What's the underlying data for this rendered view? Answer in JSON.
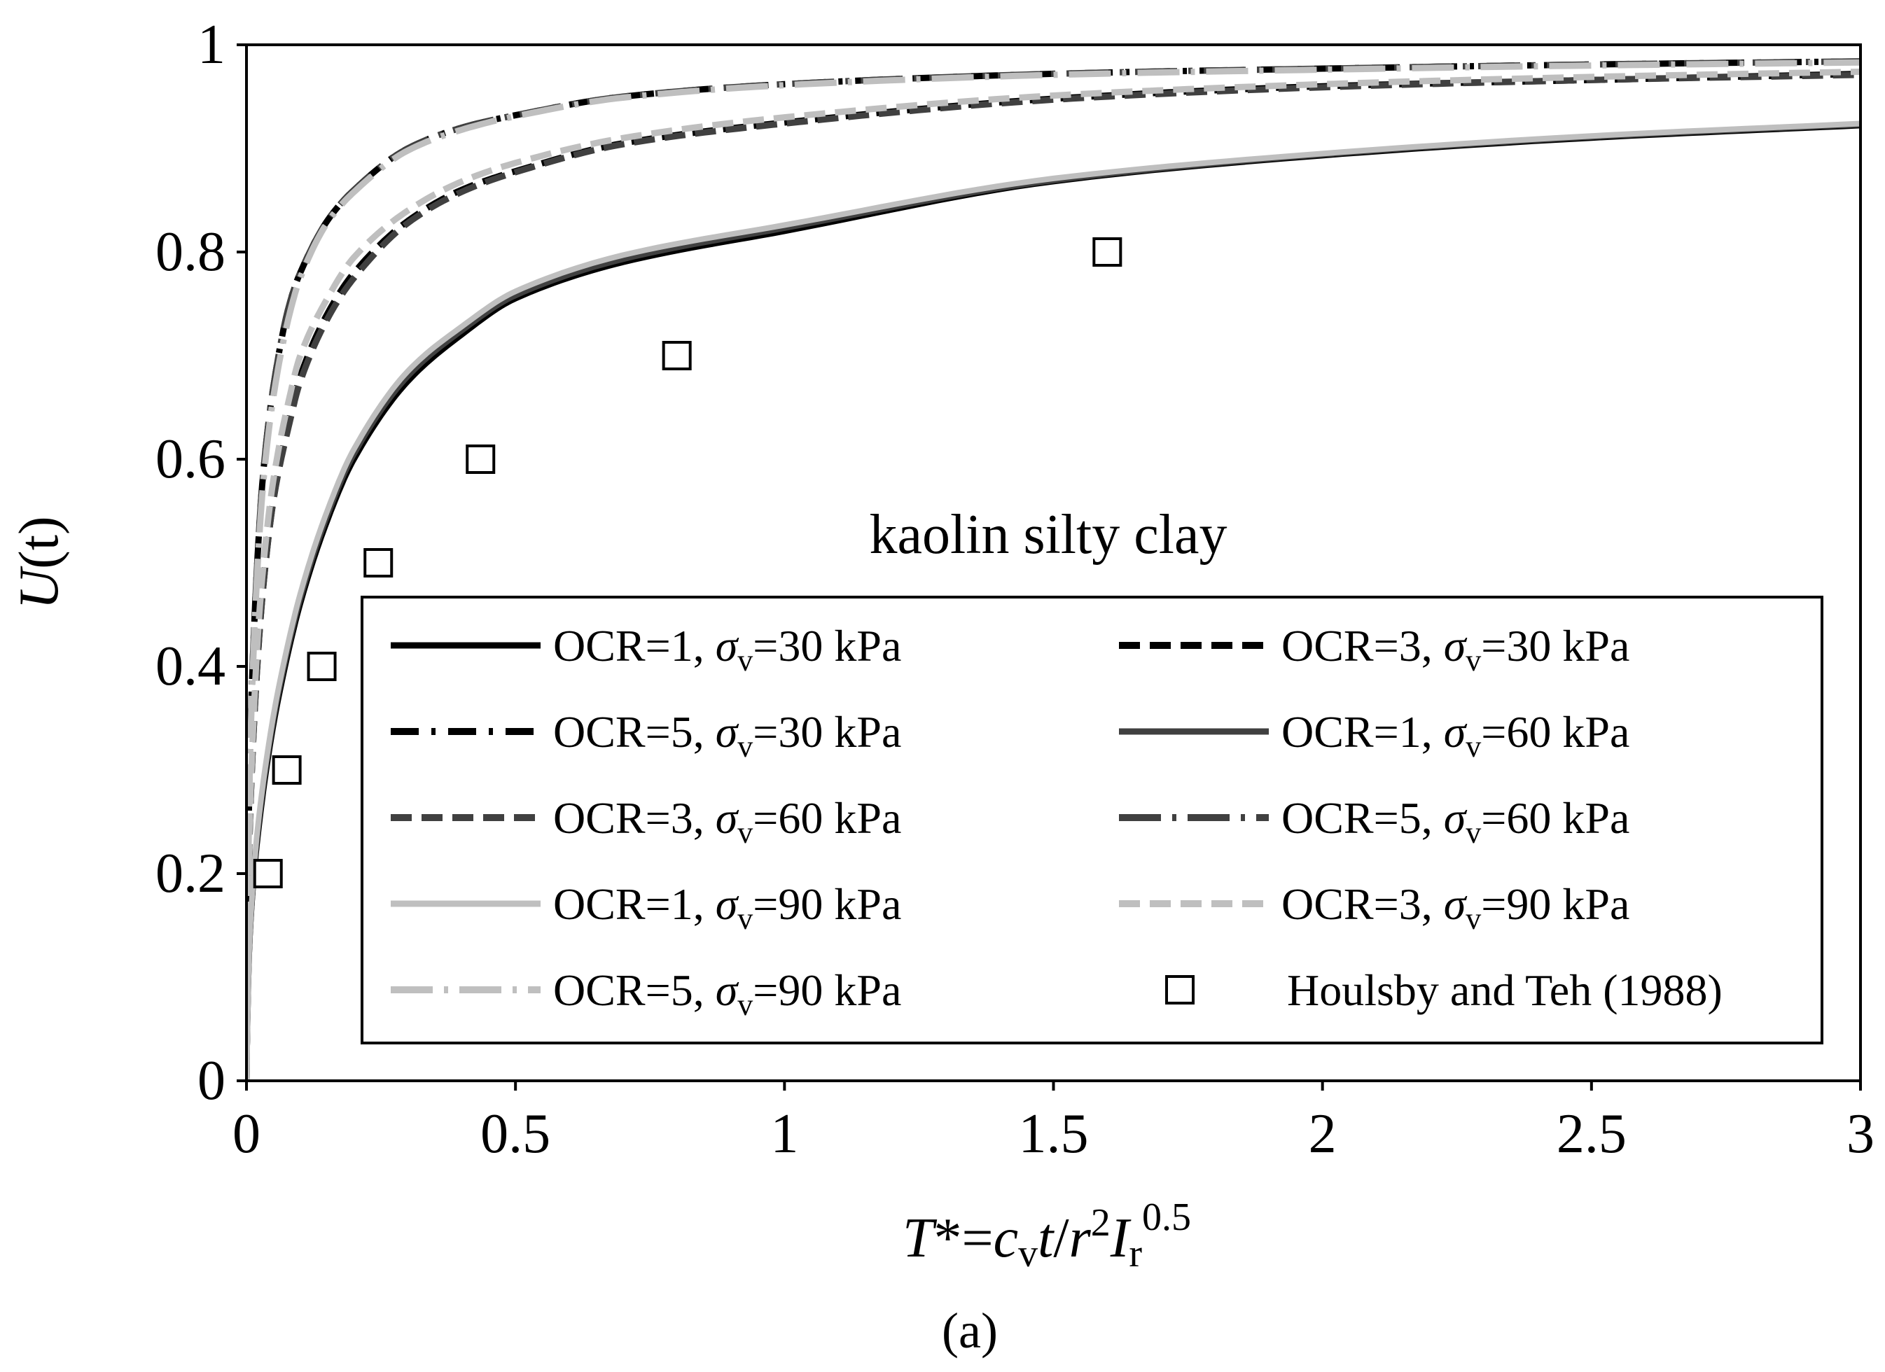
{
  "chart_data": {
    "type": "line",
    "annotation": "kaolin silty clay",
    "caption": "(a)",
    "xlabel": {
      "T": "T",
      "star_eq": "*=",
      "c": "c",
      "v_sub": "v",
      "t": "t",
      "slash": "/",
      "r": "r",
      "sq": "2",
      "I": "I",
      "r_sub": "r",
      "exp": "0.5"
    },
    "ylabel": {
      "U": "U",
      "t": "(t)"
    },
    "xlim": [
      0,
      3
    ],
    "ylim": [
      0,
      1
    ],
    "xticks": [
      "0",
      "0.5",
      "1",
      "1.5",
      "2",
      "2.5",
      "3"
    ],
    "yticks": [
      "0",
      "0.2",
      "0.4",
      "0.6",
      "0.8",
      "1"
    ],
    "grid": false,
    "legend_placement": "bottom-right",
    "series": [
      {
        "name": "OCR=1, σv=30 kPa",
        "label_pre": "OCR=1, ",
        "label_post": "=30 kPa",
        "color": "#000000",
        "dash": "solid",
        "x": [
          0,
          0.005,
          0.01,
          0.02,
          0.04,
          0.06,
          0.1,
          0.15,
          0.2,
          0.3,
          0.4,
          0.5,
          0.7,
          1.0,
          1.5,
          2.0,
          2.5,
          3.0
        ],
        "y": [
          0,
          0.12,
          0.17,
          0.23,
          0.31,
          0.37,
          0.46,
          0.54,
          0.6,
          0.675,
          0.72,
          0.755,
          0.79,
          0.82,
          0.868,
          0.893,
          0.91,
          0.922
        ]
      },
      {
        "name": "OCR=3, σv=30 kPa",
        "label_pre": "OCR=3, ",
        "label_post": "=30 kPa",
        "color": "#000000",
        "dash": "dashed",
        "x": [
          0,
          0.005,
          0.01,
          0.02,
          0.03,
          0.05,
          0.08,
          0.1,
          0.15,
          0.2,
          0.3,
          0.4,
          0.5,
          0.7,
          1.0,
          1.5,
          2.0,
          2.5,
          3.0
        ],
        "y": [
          0,
          0.22,
          0.3,
          0.4,
          0.47,
          0.56,
          0.64,
          0.68,
          0.74,
          0.78,
          0.83,
          0.86,
          0.878,
          0.905,
          0.925,
          0.948,
          0.96,
          0.966,
          0.972
        ]
      },
      {
        "name": "OCR=5, σv=30 kPa",
        "label_pre": "OCR=5, ",
        "label_post": "=30 kPa",
        "color": "#000000",
        "dash": "dashdot",
        "x": [
          0,
          0.005,
          0.01,
          0.02,
          0.03,
          0.05,
          0.08,
          0.1,
          0.15,
          0.2,
          0.3,
          0.4,
          0.5,
          0.7,
          1.0,
          1.5,
          2.0,
          2.5,
          3.0
        ],
        "y": [
          0,
          0.28,
          0.38,
          0.5,
          0.58,
          0.67,
          0.75,
          0.78,
          0.83,
          0.86,
          0.9,
          0.92,
          0.932,
          0.95,
          0.962,
          0.972,
          0.977,
          0.981,
          0.984
        ]
      },
      {
        "name": "OCR=1, σv=60 kPa",
        "label_pre": "OCR=1, ",
        "label_post": "=60 kPa",
        "color": "#404040",
        "dash": "solid",
        "x": [
          0,
          0.005,
          0.01,
          0.02,
          0.04,
          0.06,
          0.1,
          0.15,
          0.2,
          0.3,
          0.4,
          0.5,
          0.7,
          1.0,
          1.5,
          2.0,
          2.5,
          3.0
        ],
        "y": [
          0,
          0.12,
          0.17,
          0.235,
          0.315,
          0.375,
          0.465,
          0.545,
          0.605,
          0.68,
          0.724,
          0.758,
          0.793,
          0.823,
          0.869,
          0.894,
          0.911,
          0.923
        ]
      },
      {
        "name": "OCR=3, σv=60 kPa",
        "label_pre": "OCR=3, ",
        "label_post": "=60 kPa",
        "color": "#404040",
        "dash": "dashed",
        "x": [
          0,
          0.005,
          0.01,
          0.02,
          0.03,
          0.05,
          0.08,
          0.1,
          0.15,
          0.2,
          0.3,
          0.4,
          0.5,
          0.7,
          1.0,
          1.5,
          2.0,
          2.5,
          3.0
        ],
        "y": [
          0,
          0.22,
          0.3,
          0.4,
          0.47,
          0.56,
          0.635,
          0.675,
          0.735,
          0.775,
          0.828,
          0.858,
          0.877,
          0.904,
          0.924,
          0.947,
          0.959,
          0.966,
          0.971
        ]
      },
      {
        "name": "OCR=5, σv=60 kPa",
        "label_pre": "OCR=5, ",
        "label_post": "=60 kPa",
        "color": "#404040",
        "dash": "longdashdot",
        "x": [
          0,
          0.005,
          0.01,
          0.02,
          0.03,
          0.05,
          0.08,
          0.1,
          0.15,
          0.2,
          0.3,
          0.4,
          0.5,
          0.7,
          1.0,
          1.5,
          2.0,
          2.5,
          3.0
        ],
        "y": [
          0,
          0.28,
          0.38,
          0.5,
          0.58,
          0.67,
          0.75,
          0.78,
          0.83,
          0.86,
          0.9,
          0.92,
          0.932,
          0.95,
          0.962,
          0.972,
          0.977,
          0.981,
          0.984
        ]
      },
      {
        "name": "OCR=1, σv=90 kPa",
        "label_pre": "OCR=1, ",
        "label_post": "=90 kPa",
        "color": "#bfbfbf",
        "dash": "solid",
        "x": [
          0,
          0.005,
          0.01,
          0.02,
          0.04,
          0.06,
          0.1,
          0.15,
          0.2,
          0.3,
          0.4,
          0.5,
          0.7,
          1.0,
          1.5,
          2.0,
          2.5,
          3.0
        ],
        "y": [
          0,
          0.125,
          0.175,
          0.24,
          0.32,
          0.38,
          0.47,
          0.55,
          0.61,
          0.685,
          0.728,
          0.762,
          0.797,
          0.826,
          0.871,
          0.895,
          0.912,
          0.924
        ]
      },
      {
        "name": "OCR=3, σv=90 kPa",
        "label_pre": "OCR=3, ",
        "label_post": "=90 kPa",
        "color": "#bfbfbf",
        "dash": "dashed",
        "x": [
          0,
          0.005,
          0.01,
          0.02,
          0.03,
          0.05,
          0.08,
          0.1,
          0.15,
          0.2,
          0.3,
          0.4,
          0.5,
          0.7,
          1.0,
          1.5,
          2.0,
          2.5,
          3.0
        ],
        "y": [
          0,
          0.23,
          0.31,
          0.42,
          0.49,
          0.58,
          0.66,
          0.7,
          0.755,
          0.795,
          0.84,
          0.868,
          0.886,
          0.91,
          0.93,
          0.951,
          0.962,
          0.969,
          0.974
        ]
      },
      {
        "name": "OCR=5, σv=90 kPa",
        "label_pre": "OCR=5, ",
        "label_post": "=90 kPa",
        "color": "#bfbfbf",
        "dash": "longdashdot",
        "x": [
          0,
          0.005,
          0.01,
          0.02,
          0.03,
          0.05,
          0.08,
          0.1,
          0.15,
          0.2,
          0.3,
          0.4,
          0.5,
          0.7,
          1.0,
          1.5,
          2.0,
          2.5,
          3.0
        ],
        "y": [
          0,
          0.27,
          0.37,
          0.49,
          0.57,
          0.66,
          0.74,
          0.775,
          0.828,
          0.858,
          0.898,
          0.918,
          0.931,
          0.949,
          0.961,
          0.971,
          0.976,
          0.98,
          0.983
        ]
      }
    ],
    "markers": {
      "name": "Houlsby and Teh (1988)",
      "symbol": "open-square",
      "x": [
        0.04,
        0.075,
        0.14,
        0.245,
        0.435,
        0.8,
        1.6
      ],
      "y": [
        0.2,
        0.3,
        0.4,
        0.5,
        0.6,
        0.7,
        0.8
      ]
    }
  }
}
